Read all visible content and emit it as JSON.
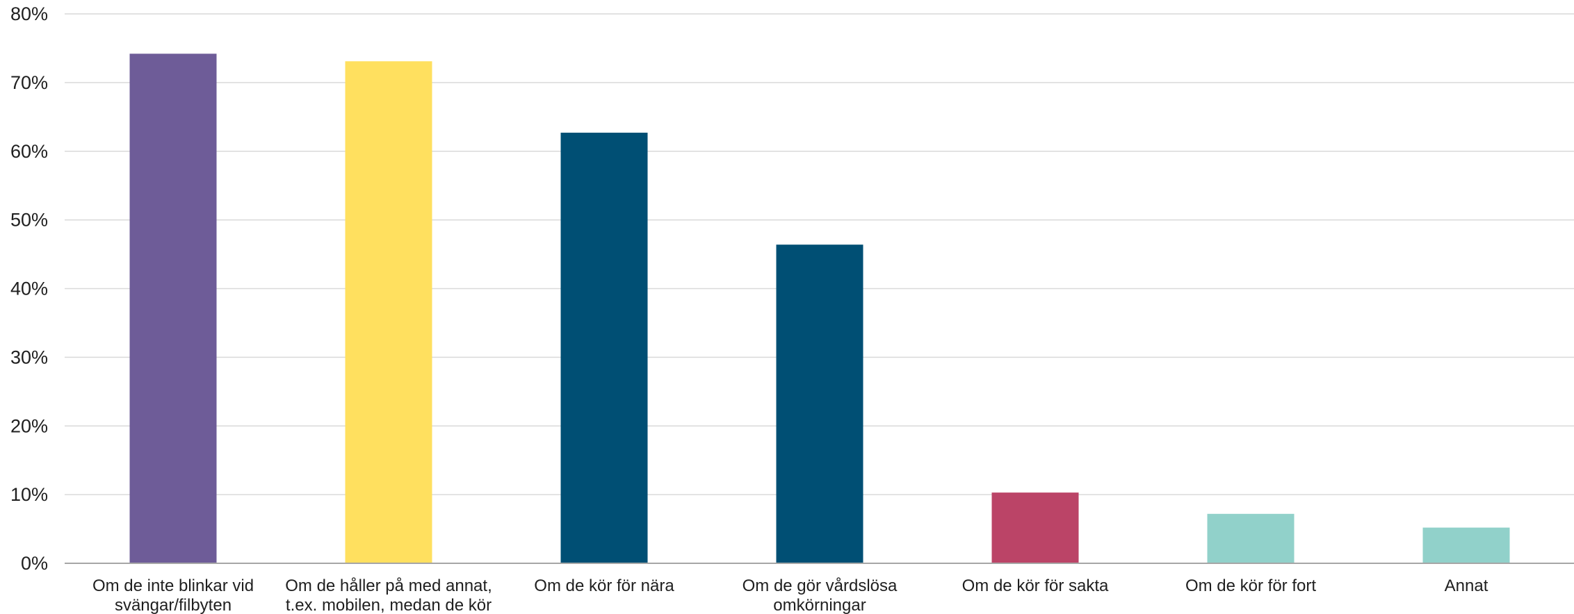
{
  "chart_data": {
    "type": "bar",
    "categories": [
      [
        "Om de inte blinkar vid",
        "svängar/filbyten"
      ],
      [
        "Om de håller på med annat,",
        "t.ex. mobilen, medan de kör"
      ],
      [
        "Om de kör för nära"
      ],
      [
        "Om de gör vårdslösa",
        "omkörningar"
      ],
      [
        "Om de kör för sakta"
      ],
      [
        "Om de kör för fort"
      ],
      [
        "Annat"
      ]
    ],
    "values": [
      74.2,
      73.1,
      62.7,
      46.4,
      10.3,
      7.2,
      5.2
    ],
    "unit": "%",
    "colors": [
      "#6e5c98",
      "#ffe05f",
      "#004f74",
      "#004f74",
      "#bb4467",
      "#91d1ca",
      "#91d1ca"
    ],
    "ylim": [
      0,
      80
    ],
    "yticks": [
      0,
      10,
      20,
      30,
      40,
      50,
      60,
      70,
      80
    ],
    "ytick_labels": [
      "0%",
      "10%",
      "20%",
      "30%",
      "40%",
      "50%",
      "60%",
      "70%",
      "80%"
    ],
    "grid": true,
    "gridline_color": "#d9d9d9",
    "axis_color": "#a6a6a6",
    "legend": "none",
    "title": "",
    "xlabel": "",
    "ylabel": ""
  }
}
